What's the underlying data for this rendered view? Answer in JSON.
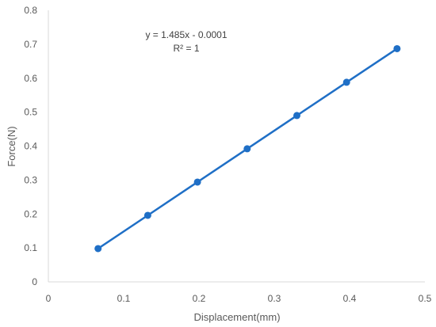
{
  "chart_data": {
    "type": "scatter",
    "title": "",
    "xlabel": "Displacement(mm)",
    "ylabel": "Force(N)",
    "xlim": [
      0,
      0.5
    ],
    "ylim": [
      0,
      0.8
    ],
    "x_ticks": [
      "0",
      "0.1",
      "0.2",
      "0.3",
      "0.4",
      "0.5"
    ],
    "y_ticks": [
      "0",
      "0.1",
      "0.2",
      "0.3",
      "0.4",
      "0.5",
      "0.6",
      "0.7",
      "0.8"
    ],
    "grid": false,
    "legend": "none",
    "series": [
      {
        "x": [
          0.066,
          0.132,
          0.198,
          0.264,
          0.33,
          0.396,
          0.463
        ],
        "y": [
          0.098,
          0.196,
          0.294,
          0.392,
          0.49,
          0.588,
          0.687
        ],
        "color": "#1f6fc6",
        "marker": "circle",
        "connected": true
      }
    ],
    "annotations": {
      "equation": "y = 1.485x - 0.0001",
      "r_squared": "R² = 1"
    }
  }
}
